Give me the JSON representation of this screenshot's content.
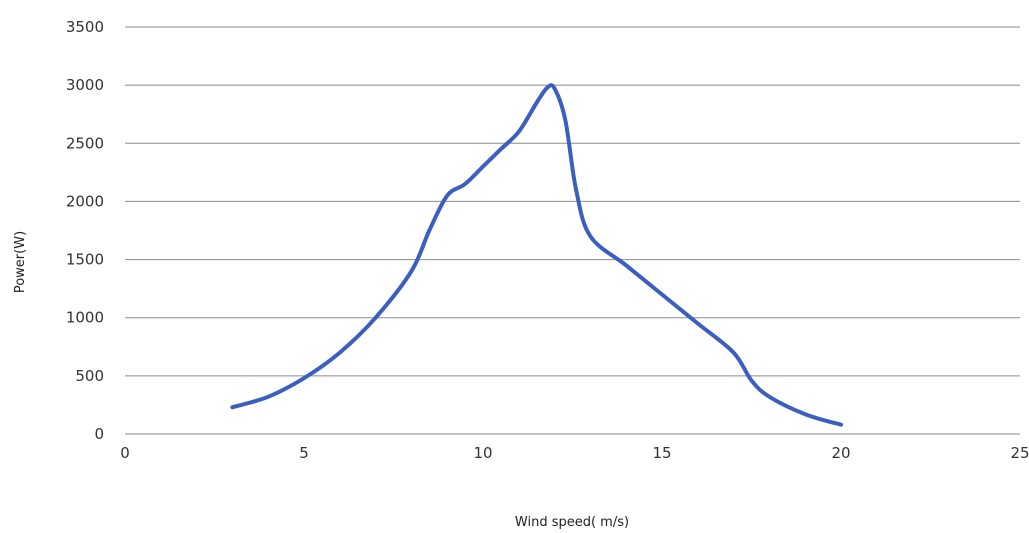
{
  "chart_data": {
    "type": "line",
    "title": "",
    "xlabel": "Wind speed( m/s)",
    "ylabel": "Power(W)",
    "xlim": [
      0,
      25
    ],
    "ylim": [
      0,
      3500
    ],
    "x_ticks": [
      0,
      5,
      10,
      15,
      20,
      25
    ],
    "y_ticks": [
      0,
      500,
      1000,
      1500,
      2000,
      2500,
      3000,
      3500
    ],
    "grid": "horizontal",
    "legend": "none",
    "series": [
      {
        "color": "#3a5fc0",
        "x": [
          3,
          4,
          5,
          6,
          7,
          8,
          8.5,
          9,
          9.5,
          10,
          10.5,
          11,
          11.5,
          11.8,
          12,
          12.3,
          12.6,
          13,
          14,
          15,
          16,
          17,
          17.5,
          18,
          19,
          20
        ],
        "y": [
          230,
          320,
          480,
          700,
          1000,
          1400,
          1750,
          2050,
          2150,
          2300,
          2450,
          2600,
          2850,
          2980,
          2970,
          2700,
          2100,
          1700,
          1450,
          1200,
          950,
          700,
          460,
          320,
          170,
          80
        ]
      }
    ]
  }
}
